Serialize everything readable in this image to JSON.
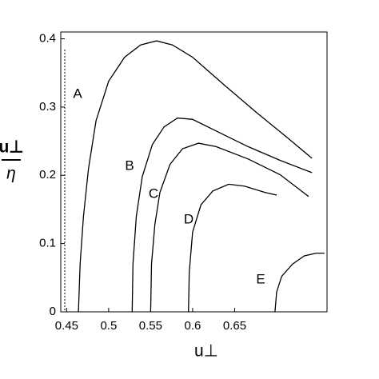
{
  "chart_data": {
    "type": "line",
    "xlabel": "u⊥",
    "ylabel": {
      "numerator": "u⊥",
      "denominator": "η"
    },
    "xlim": [
      0.443,
      0.76
    ],
    "ylim": [
      0,
      0.41
    ],
    "xticks": [
      0.45,
      0.5,
      0.55,
      0.6,
      0.65
    ],
    "yticks": [
      0,
      0.1,
      0.2,
      0.3,
      0.4
    ],
    "series": [
      {
        "name": "A",
        "color": "#000000",
        "x": [
          0.464,
          0.466,
          0.47,
          0.476,
          0.485,
          0.5,
          0.519,
          0.538,
          0.557,
          0.576,
          0.6,
          0.638,
          0.676,
          0.714,
          0.742
        ],
        "values": [
          0,
          0.07,
          0.14,
          0.21,
          0.28,
          0.338,
          0.373,
          0.391,
          0.397,
          0.391,
          0.373,
          0.332,
          0.292,
          0.254,
          0.225
        ]
      },
      {
        "name": "B",
        "color": "#000000",
        "x": [
          0.528,
          0.529,
          0.533,
          0.54,
          0.552,
          0.566,
          0.582,
          0.6,
          0.628,
          0.666,
          0.704,
          0.742
        ],
        "values": [
          0,
          0.07,
          0.14,
          0.198,
          0.245,
          0.271,
          0.284,
          0.282,
          0.265,
          0.242,
          0.222,
          0.204
        ]
      },
      {
        "name": "C",
        "color": "#000000",
        "x": [
          0.55,
          0.551,
          0.555,
          0.561,
          0.573,
          0.588,
          0.607,
          0.628,
          0.666,
          0.704,
          0.738
        ],
        "values": [
          0,
          0.07,
          0.128,
          0.175,
          0.216,
          0.239,
          0.247,
          0.242,
          0.224,
          0.201,
          0.169
        ]
      },
      {
        "name": "D",
        "color": "#000000",
        "x": [
          0.595,
          0.596,
          0.6,
          0.61,
          0.624,
          0.643,
          0.662,
          0.686,
          0.7
        ],
        "values": [
          0,
          0.058,
          0.117,
          0.157,
          0.177,
          0.187,
          0.184,
          0.175,
          0.171
        ]
      },
      {
        "name": "E",
        "color": "#000000",
        "x": [
          0.698,
          0.7,
          0.706,
          0.719,
          0.733,
          0.747,
          0.757
        ],
        "values": [
          0,
          0.029,
          0.052,
          0.07,
          0.082,
          0.086,
          0.086
        ]
      }
    ]
  }
}
